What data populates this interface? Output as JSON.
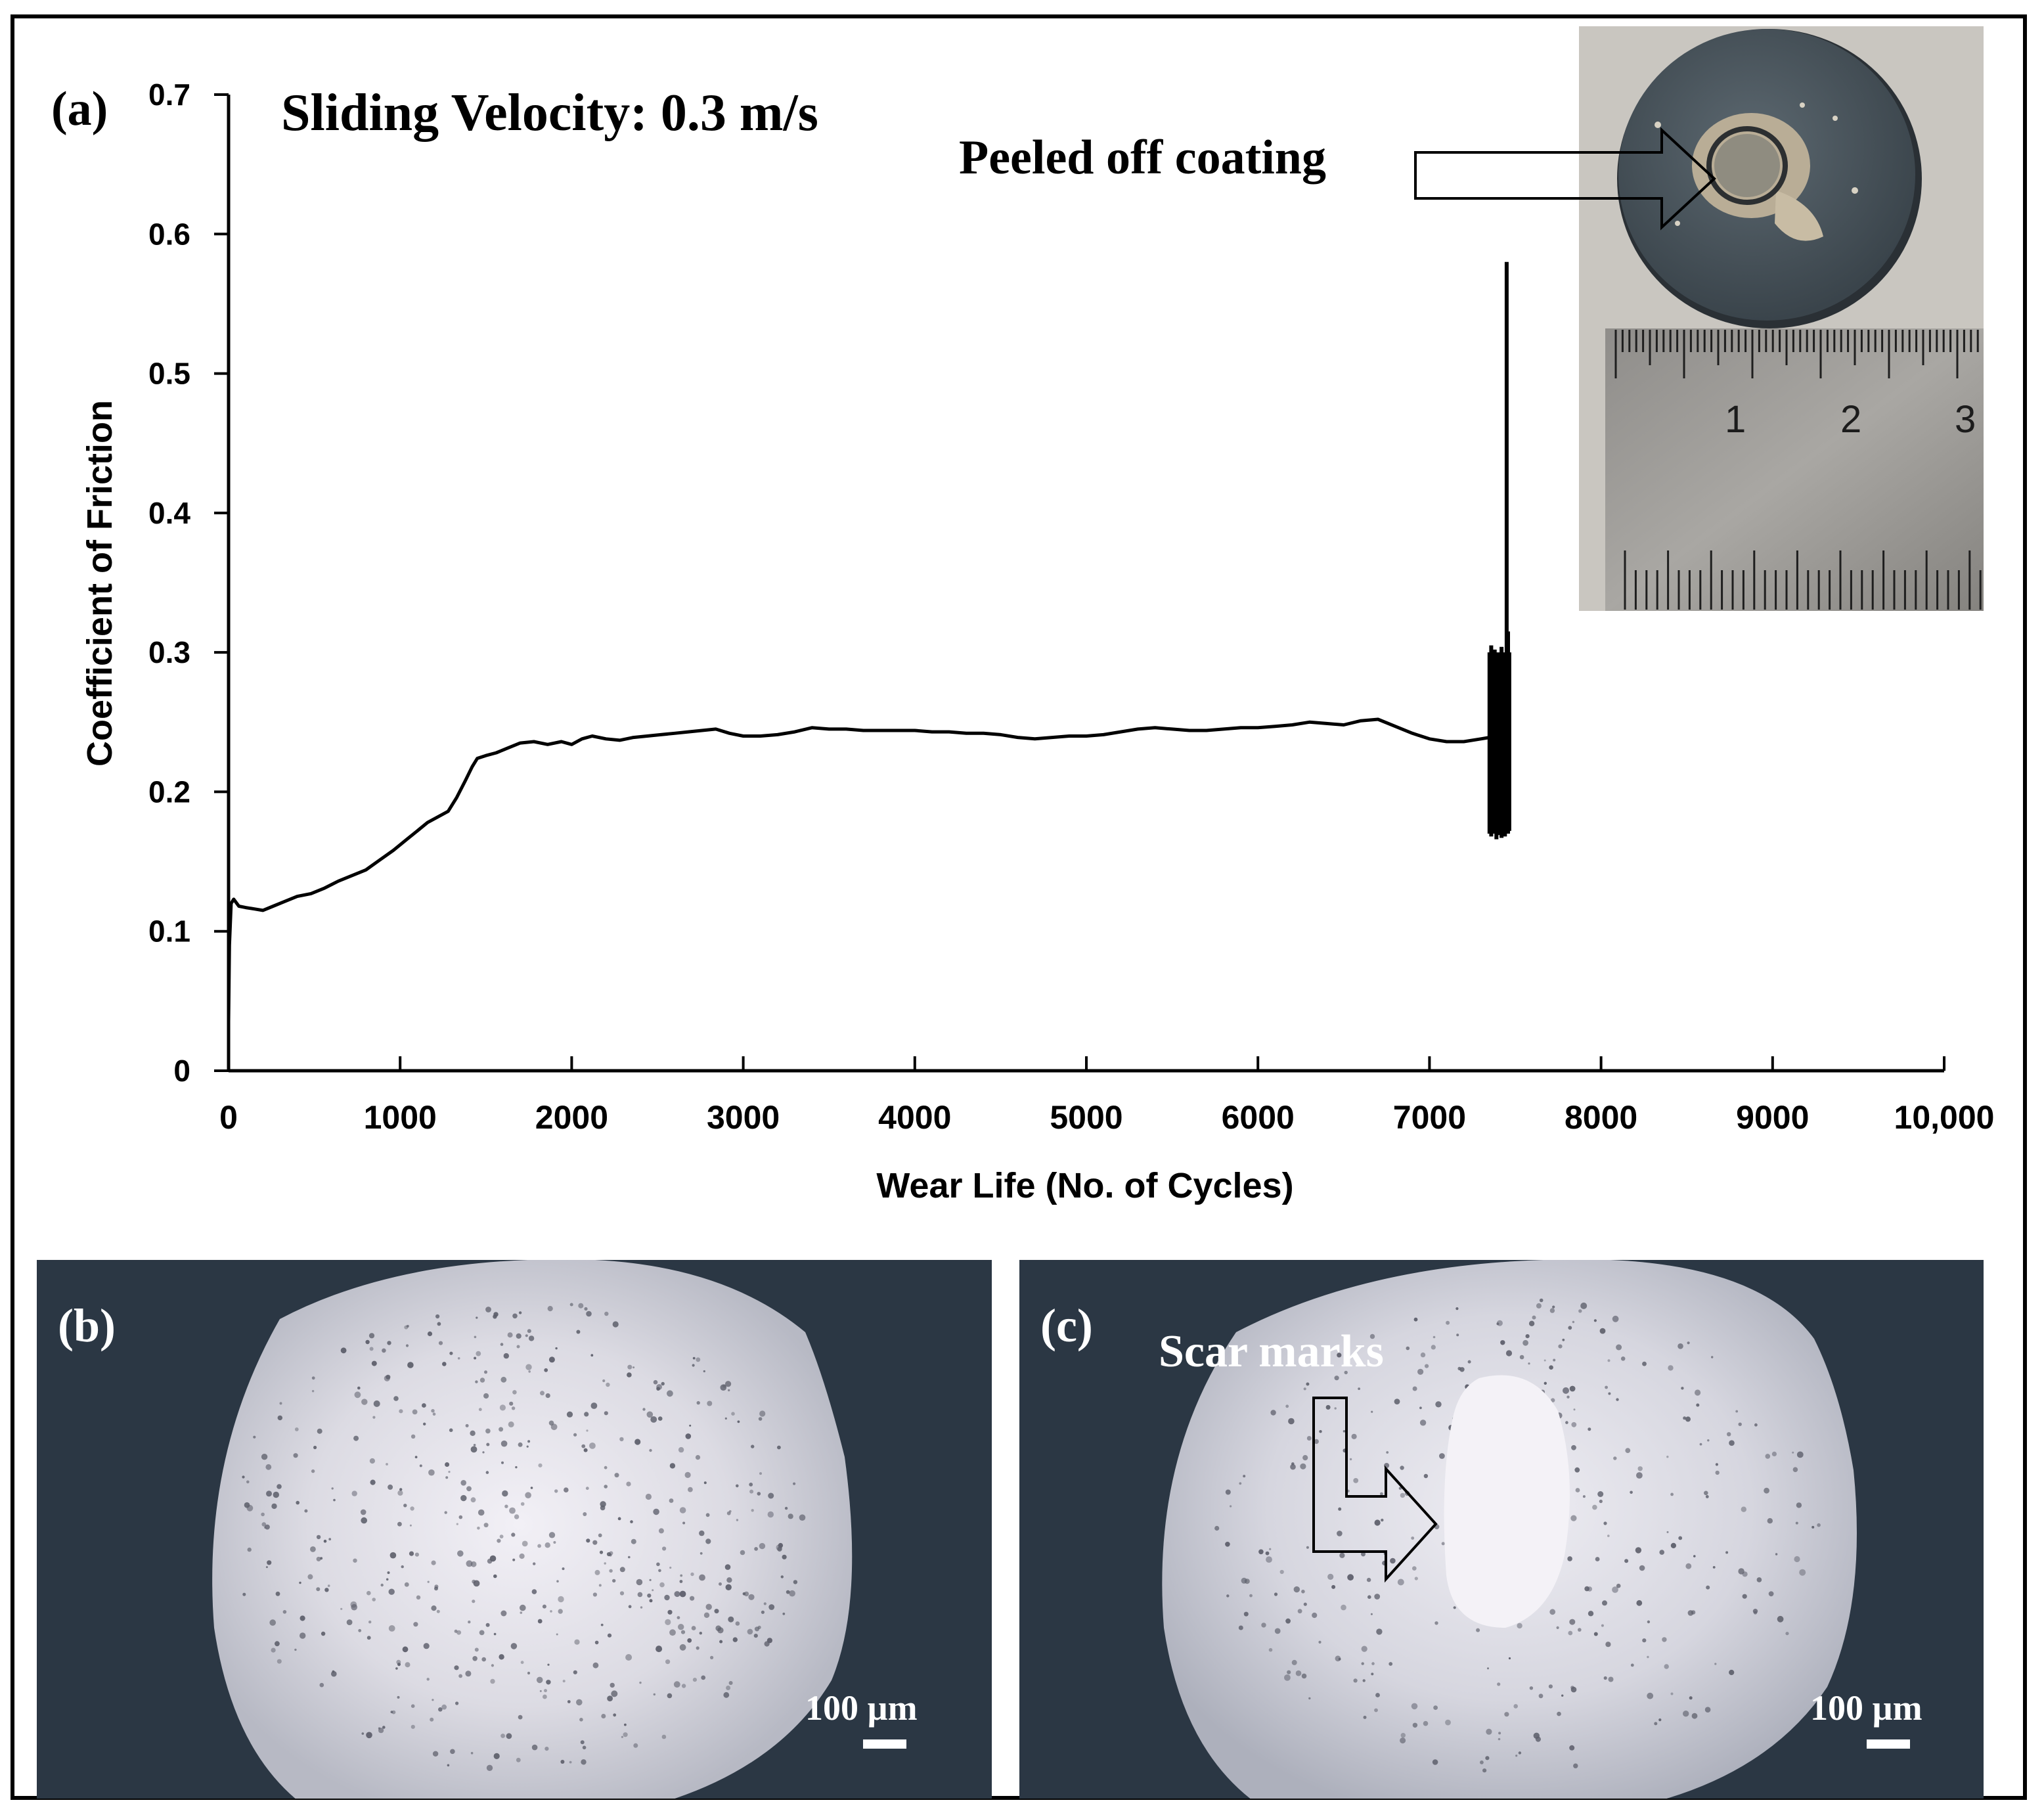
{
  "chart_data": {
    "type": "line",
    "panel_label": "(a)",
    "title": "Sliding Velocity: 0.3 m/s",
    "xlabel": "Wear Life (No. of Cycles)",
    "ylabel": "Coefficient of Friction",
    "xlim": [
      0,
      10000
    ],
    "ylim": [
      0,
      0.7
    ],
    "xticks": [
      0,
      1000,
      2000,
      3000,
      4000,
      5000,
      6000,
      7000,
      8000,
      9000,
      10000
    ],
    "xtick_labels": [
      "0",
      "1000",
      "2000",
      "3000",
      "4000",
      "5000",
      "6000",
      "7000",
      "8000",
      "9000",
      "10,000"
    ],
    "yticks": [
      0,
      0.1,
      0.2,
      0.3,
      0.4,
      0.5,
      0.6,
      0.7
    ],
    "ytick_labels": [
      "0",
      "0.1",
      "0.2",
      "0.3",
      "0.4",
      "0.5",
      "0.6",
      "0.7"
    ],
    "grid": false,
    "series": [
      {
        "x": [
          0,
          5,
          15,
          30,
          60,
          100,
          150,
          200,
          260,
          320,
          400,
          480,
          560,
          640,
          720,
          800,
          880,
          960,
          1040,
          1100,
          1160,
          1220,
          1280,
          1330,
          1380,
          1420,
          1450,
          1500,
          1560,
          1620,
          1700,
          1780,
          1860,
          1940,
          2000,
          2060,
          2120,
          2200,
          2280,
          2360,
          2440,
          2520,
          2600,
          2680,
          2760,
          2840,
          2920,
          3000,
          3100,
          3200,
          3300,
          3400,
          3500,
          3600,
          3700,
          3800,
          3900,
          4000,
          4100,
          4200,
          4300,
          4400,
          4500,
          4600,
          4700,
          4800,
          4900,
          5000,
          5100,
          5200,
          5300,
          5400,
          5500,
          5600,
          5700,
          5800,
          5900,
          6000,
          6100,
          6200,
          6300,
          6400,
          6500,
          6600,
          6700,
          6800,
          6900,
          7000,
          7100,
          7200,
          7300,
          7350
        ],
        "y": [
          0.035,
          0.09,
          0.12,
          0.123,
          0.118,
          0.117,
          0.116,
          0.115,
          0.118,
          0.121,
          0.125,
          0.127,
          0.131,
          0.136,
          0.14,
          0.144,
          0.151,
          0.158,
          0.166,
          0.172,
          0.178,
          0.182,
          0.186,
          0.196,
          0.208,
          0.218,
          0.224,
          0.226,
          0.228,
          0.231,
          0.235,
          0.236,
          0.234,
          0.236,
          0.234,
          0.238,
          0.24,
          0.238,
          0.237,
          0.239,
          0.24,
          0.241,
          0.242,
          0.243,
          0.244,
          0.245,
          0.242,
          0.24,
          0.24,
          0.241,
          0.243,
          0.246,
          0.245,
          0.245,
          0.244,
          0.244,
          0.244,
          0.244,
          0.243,
          0.243,
          0.242,
          0.242,
          0.241,
          0.239,
          0.238,
          0.239,
          0.24,
          0.24,
          0.241,
          0.243,
          0.245,
          0.246,
          0.245,
          0.244,
          0.244,
          0.245,
          0.246,
          0.246,
          0.247,
          0.248,
          0.25,
          0.249,
          0.248,
          0.251,
          0.252,
          0.247,
          0.242,
          0.238,
          0.236,
          0.236,
          0.238,
          0.239
        ]
      }
    ],
    "noise_region": {
      "x": [
        7350,
        7360,
        7370,
        7380,
        7390,
        7400,
        7410,
        7420,
        7430,
        7440,
        7450,
        7458,
        7465
      ],
      "y_low": [
        0.17,
        0.168,
        0.172,
        0.17,
        0.166,
        0.169,
        0.171,
        0.167,
        0.17,
        0.168,
        0.172,
        0.17,
        0.172
      ],
      "y_high": [
        0.3,
        0.305,
        0.298,
        0.302,
        0.296,
        0.3,
        0.298,
        0.304,
        0.299,
        0.3,
        0.58,
        0.315,
        0.3
      ]
    }
  },
  "inset_photo": {
    "annotation": "Peeled off coating",
    "ruler_labels": [
      "1",
      "2",
      "3"
    ],
    "bg_color": "#c9c6c0",
    "disc_color": "#48535b"
  },
  "micrograph_b": {
    "label": "(b)",
    "scale_bar": "100 µm",
    "bg_color": "#2b3744",
    "field_color": "#e3e3ea"
  },
  "micrograph_c": {
    "label": "(c)",
    "annotation": "Scar marks",
    "scale_bar": "100 µm",
    "bg_color": "#2b3744",
    "field_color": "#dfdfe6"
  }
}
